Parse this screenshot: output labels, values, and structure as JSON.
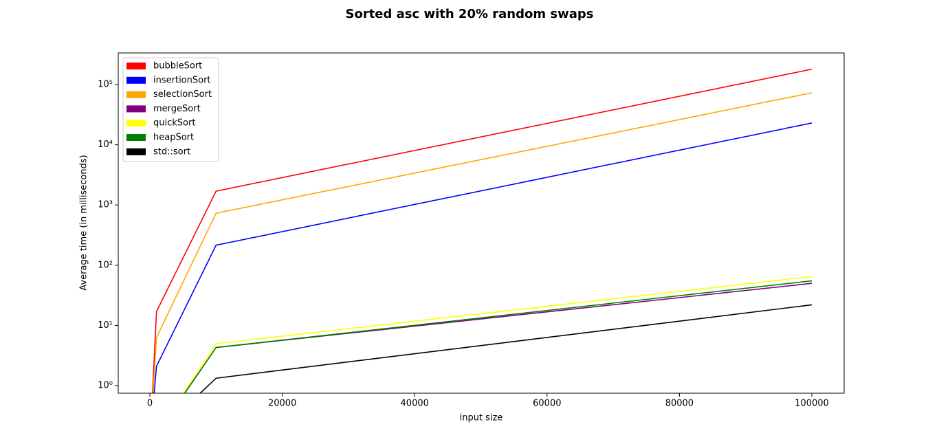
{
  "chart_data": {
    "type": "line",
    "title": "Sorted asc with 20% random swaps",
    "xlabel": "input size",
    "ylabel": "Average time (in milliseconds)",
    "x": [
      100,
      1000,
      10000,
      100000
    ],
    "log_y": true,
    "legend": "upper left",
    "series": [
      {
        "name": "bubbleSort",
        "color": "#ff0000",
        "values": [
          0,
          17,
          1700,
          180000
        ]
      },
      {
        "name": "insertionSort",
        "color": "#0000ff",
        "values": [
          0,
          2.1,
          215,
          23000
        ]
      },
      {
        "name": "selectionSort",
        "color": "#ffa500",
        "values": [
          0,
          6.3,
          730,
          73000
        ]
      },
      {
        "name": "mergeSort",
        "color": "#800080",
        "values": [
          0,
          0,
          4.3,
          50
        ]
      },
      {
        "name": "quickSort",
        "color": "#ffff00",
        "values": [
          0,
          0,
          5.0,
          65
        ]
      },
      {
        "name": "heapSort",
        "color": "#008000",
        "values": [
          0,
          0,
          4.3,
          55
        ]
      },
      {
        "name": "std::sort",
        "color": "#000000",
        "values": [
          0,
          0,
          1.33,
          22
        ]
      }
    ],
    "xlim": [
      -4780,
      104880
    ],
    "xticks": [
      0,
      20000,
      40000,
      60000,
      80000,
      100000
    ],
    "ylim": [
      0.75,
      335000
    ],
    "yticks": [
      {
        "value": 1,
        "label": "10⁰"
      },
      {
        "value": 10,
        "label": "10¹"
      },
      {
        "value": 100,
        "label": "10²"
      },
      {
        "value": 1000,
        "label": "10³"
      },
      {
        "value": 10000,
        "label": "10⁴"
      },
      {
        "value": 100000,
        "label": "10⁵"
      }
    ]
  }
}
